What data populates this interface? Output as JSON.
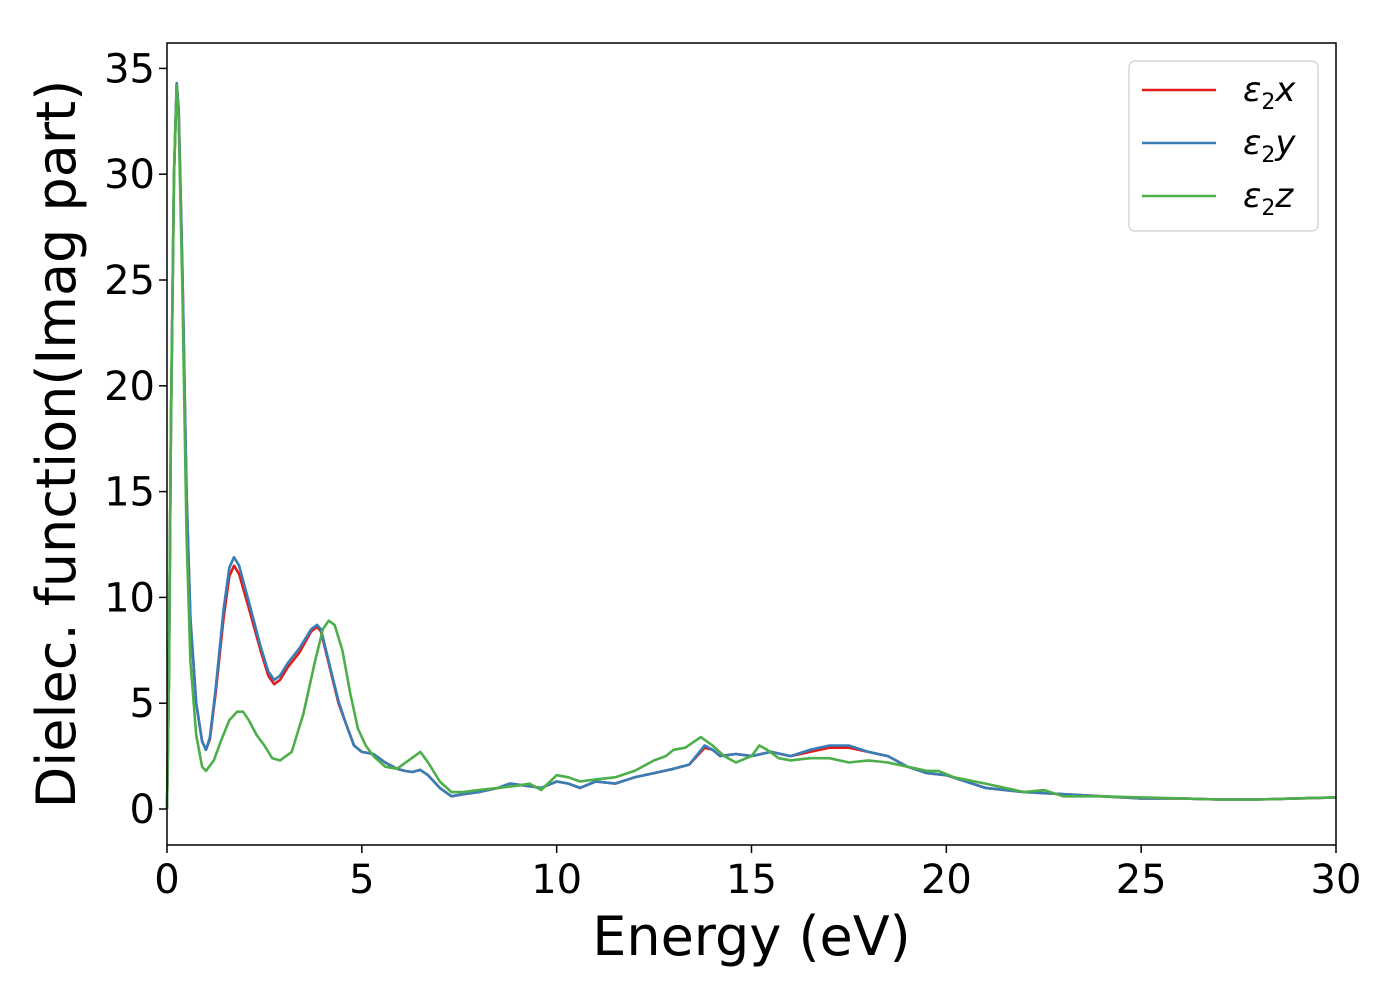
{
  "chart_data": {
    "type": "line",
    "title": "",
    "xlabel": "Energy (eV)",
    "ylabel": "Dielec. function(Imag part)",
    "xlim": [
      0,
      30
    ],
    "ylim": [
      -1.7,
      36.2
    ],
    "xticks": [
      0,
      5,
      10,
      15,
      20,
      25,
      30
    ],
    "yticks": [
      0,
      5,
      10,
      15,
      20,
      25,
      30,
      35
    ],
    "grid": false,
    "legend_position": "top-right",
    "series": [
      {
        "name": "ε2x",
        "legend_base": "ε",
        "legend_sub": "2",
        "legend_var": "x",
        "color": "#e41a1c",
        "points": [
          [
            0,
            0
          ],
          [
            0.05,
            6
          ],
          [
            0.1,
            18
          ],
          [
            0.18,
            30
          ],
          [
            0.25,
            34.3
          ],
          [
            0.3,
            33
          ],
          [
            0.4,
            25
          ],
          [
            0.5,
            15
          ],
          [
            0.6,
            9
          ],
          [
            0.75,
            5
          ],
          [
            0.9,
            3.2
          ],
          [
            1.0,
            2.8
          ],
          [
            1.1,
            3.3
          ],
          [
            1.25,
            5.5
          ],
          [
            1.45,
            9
          ],
          [
            1.6,
            11
          ],
          [
            1.72,
            11.5
          ],
          [
            1.85,
            11.1
          ],
          [
            2.1,
            9.5
          ],
          [
            2.4,
            7.5
          ],
          [
            2.6,
            6.3
          ],
          [
            2.75,
            5.9
          ],
          [
            2.9,
            6.1
          ],
          [
            3.1,
            6.7
          ],
          [
            3.4,
            7.4
          ],
          [
            3.7,
            8.4
          ],
          [
            3.85,
            8.6
          ],
          [
            3.95,
            8.4
          ],
          [
            4.2,
            6.5
          ],
          [
            4.4,
            5
          ],
          [
            4.6,
            4
          ],
          [
            4.8,
            3
          ],
          [
            5.0,
            2.7
          ],
          [
            5.3,
            2.6
          ],
          [
            5.6,
            2.2
          ],
          [
            5.9,
            1.9
          ],
          [
            6.1,
            1.8
          ],
          [
            6.3,
            1.75
          ],
          [
            6.5,
            1.85
          ],
          [
            6.7,
            1.6
          ],
          [
            7.0,
            1
          ],
          [
            7.3,
            0.6
          ],
          [
            7.6,
            0.7
          ],
          [
            8.0,
            0.8
          ],
          [
            8.5,
            1.0
          ],
          [
            8.8,
            1.2
          ],
          [
            9.2,
            1.1
          ],
          [
            9.6,
            1.0
          ],
          [
            10.0,
            1.3
          ],
          [
            10.3,
            1.2
          ],
          [
            10.6,
            1.0
          ],
          [
            11.0,
            1.3
          ],
          [
            11.5,
            1.2
          ],
          [
            12.0,
            1.5
          ],
          [
            12.5,
            1.7
          ],
          [
            13.0,
            1.9
          ],
          [
            13.4,
            2.1
          ],
          [
            13.8,
            2.9
          ],
          [
            14.0,
            2.8
          ],
          [
            14.2,
            2.5
          ],
          [
            14.6,
            2.6
          ],
          [
            15.0,
            2.5
          ],
          [
            15.5,
            2.7
          ],
          [
            16.0,
            2.5
          ],
          [
            16.5,
            2.7
          ],
          [
            17.0,
            2.9
          ],
          [
            17.5,
            2.9
          ],
          [
            18.0,
            2.7
          ],
          [
            18.5,
            2.5
          ],
          [
            19.0,
            2.0
          ],
          [
            19.5,
            1.7
          ],
          [
            20.0,
            1.6
          ],
          [
            20.5,
            1.3
          ],
          [
            21.0,
            1.0
          ],
          [
            22.0,
            0.8
          ],
          [
            23.0,
            0.7
          ],
          [
            24.0,
            0.6
          ],
          [
            25.0,
            0.5
          ],
          [
            26.0,
            0.5
          ],
          [
            27.0,
            0.45
          ],
          [
            28.0,
            0.45
          ],
          [
            29.0,
            0.5
          ],
          [
            30.0,
            0.55
          ]
        ]
      },
      {
        "name": "ε2y",
        "legend_base": "ε",
        "legend_sub": "2",
        "legend_var": "y",
        "color": "#377eb8",
        "points": [
          [
            0,
            0
          ],
          [
            0.05,
            6
          ],
          [
            0.1,
            18
          ],
          [
            0.18,
            30
          ],
          [
            0.25,
            34.3
          ],
          [
            0.3,
            33
          ],
          [
            0.4,
            25
          ],
          [
            0.5,
            15
          ],
          [
            0.6,
            9
          ],
          [
            0.75,
            5
          ],
          [
            0.9,
            3.2
          ],
          [
            1.0,
            2.8
          ],
          [
            1.1,
            3.4
          ],
          [
            1.25,
            5.7
          ],
          [
            1.45,
            9.4
          ],
          [
            1.6,
            11.4
          ],
          [
            1.72,
            11.9
          ],
          [
            1.85,
            11.5
          ],
          [
            2.1,
            9.8
          ],
          [
            2.4,
            7.7
          ],
          [
            2.6,
            6.5
          ],
          [
            2.75,
            6.1
          ],
          [
            2.9,
            6.3
          ],
          [
            3.1,
            6.9
          ],
          [
            3.4,
            7.6
          ],
          [
            3.7,
            8.5
          ],
          [
            3.85,
            8.7
          ],
          [
            3.95,
            8.5
          ],
          [
            4.2,
            6.6
          ],
          [
            4.4,
            5.1
          ],
          [
            4.6,
            4.0
          ],
          [
            4.8,
            3.0
          ],
          [
            5.0,
            2.7
          ],
          [
            5.3,
            2.6
          ],
          [
            5.6,
            2.2
          ],
          [
            5.9,
            1.9
          ],
          [
            6.1,
            1.8
          ],
          [
            6.3,
            1.75
          ],
          [
            6.5,
            1.85
          ],
          [
            6.7,
            1.6
          ],
          [
            7.0,
            1
          ],
          [
            7.3,
            0.6
          ],
          [
            7.6,
            0.7
          ],
          [
            8.0,
            0.8
          ],
          [
            8.5,
            1.0
          ],
          [
            8.8,
            1.2
          ],
          [
            9.2,
            1.1
          ],
          [
            9.6,
            1.0
          ],
          [
            10.0,
            1.3
          ],
          [
            10.3,
            1.2
          ],
          [
            10.6,
            1.0
          ],
          [
            11.0,
            1.3
          ],
          [
            11.5,
            1.2
          ],
          [
            12.0,
            1.5
          ],
          [
            12.5,
            1.7
          ],
          [
            13.0,
            1.9
          ],
          [
            13.4,
            2.1
          ],
          [
            13.8,
            3.0
          ],
          [
            14.0,
            2.8
          ],
          [
            14.2,
            2.5
          ],
          [
            14.6,
            2.6
          ],
          [
            15.0,
            2.5
          ],
          [
            15.5,
            2.7
          ],
          [
            16.0,
            2.5
          ],
          [
            16.5,
            2.8
          ],
          [
            17.0,
            3.0
          ],
          [
            17.5,
            3.0
          ],
          [
            18.0,
            2.7
          ],
          [
            18.5,
            2.5
          ],
          [
            19.0,
            2.0
          ],
          [
            19.5,
            1.7
          ],
          [
            20.0,
            1.6
          ],
          [
            20.5,
            1.3
          ],
          [
            21.0,
            1.0
          ],
          [
            22.0,
            0.8
          ],
          [
            23.0,
            0.7
          ],
          [
            24.0,
            0.6
          ],
          [
            25.0,
            0.5
          ],
          [
            26.0,
            0.5
          ],
          [
            27.0,
            0.45
          ],
          [
            28.0,
            0.45
          ],
          [
            29.0,
            0.5
          ],
          [
            30.0,
            0.55
          ]
        ]
      },
      {
        "name": "ε2z",
        "legend_base": "ε",
        "legend_sub": "2",
        "legend_var": "z",
        "color": "#4daf4a",
        "points": [
          [
            0,
            0
          ],
          [
            0.05,
            6
          ],
          [
            0.1,
            18
          ],
          [
            0.18,
            30
          ],
          [
            0.25,
            34.2
          ],
          [
            0.3,
            32.5
          ],
          [
            0.4,
            24
          ],
          [
            0.5,
            13
          ],
          [
            0.6,
            7
          ],
          [
            0.75,
            3.5
          ],
          [
            0.9,
            2
          ],
          [
            1.0,
            1.8
          ],
          [
            1.2,
            2.3
          ],
          [
            1.4,
            3.3
          ],
          [
            1.6,
            4.2
          ],
          [
            1.8,
            4.6
          ],
          [
            1.95,
            4.6
          ],
          [
            2.1,
            4.2
          ],
          [
            2.3,
            3.5
          ],
          [
            2.5,
            3.0
          ],
          [
            2.7,
            2.4
          ],
          [
            2.9,
            2.3
          ],
          [
            3.2,
            2.7
          ],
          [
            3.5,
            4.5
          ],
          [
            3.8,
            7.0
          ],
          [
            4.0,
            8.5
          ],
          [
            4.15,
            8.9
          ],
          [
            4.3,
            8.7
          ],
          [
            4.5,
            7.5
          ],
          [
            4.7,
            5.5
          ],
          [
            4.9,
            3.8
          ],
          [
            5.1,
            3.0
          ],
          [
            5.3,
            2.5
          ],
          [
            5.6,
            2.0
          ],
          [
            5.9,
            1.9
          ],
          [
            6.2,
            2.3
          ],
          [
            6.5,
            2.7
          ],
          [
            6.7,
            2.2
          ],
          [
            7.0,
            1.3
          ],
          [
            7.3,
            0.8
          ],
          [
            7.6,
            0.8
          ],
          [
            8.0,
            0.9
          ],
          [
            8.5,
            1.0
          ],
          [
            9.0,
            1.1
          ],
          [
            9.3,
            1.2
          ],
          [
            9.6,
            0.9
          ],
          [
            10.0,
            1.6
          ],
          [
            10.3,
            1.5
          ],
          [
            10.6,
            1.3
          ],
          [
            11.0,
            1.4
          ],
          [
            11.5,
            1.5
          ],
          [
            12.0,
            1.8
          ],
          [
            12.5,
            2.3
          ],
          [
            12.8,
            2.5
          ],
          [
            13.0,
            2.8
          ],
          [
            13.3,
            2.9
          ],
          [
            13.7,
            3.4
          ],
          [
            14.0,
            3.0
          ],
          [
            14.3,
            2.5
          ],
          [
            14.6,
            2.2
          ],
          [
            15.0,
            2.5
          ],
          [
            15.2,
            3.0
          ],
          [
            15.4,
            2.8
          ],
          [
            15.7,
            2.4
          ],
          [
            16.0,
            2.3
          ],
          [
            16.5,
            2.4
          ],
          [
            17.0,
            2.4
          ],
          [
            17.5,
            2.2
          ],
          [
            18.0,
            2.3
          ],
          [
            18.5,
            2.2
          ],
          [
            19.0,
            2.0
          ],
          [
            19.5,
            1.8
          ],
          [
            19.8,
            1.8
          ],
          [
            20.2,
            1.5
          ],
          [
            21.0,
            1.2
          ],
          [
            22.0,
            0.8
          ],
          [
            22.5,
            0.9
          ],
          [
            23.0,
            0.6
          ],
          [
            24.0,
            0.6
          ],
          [
            25.0,
            0.55
          ],
          [
            26.0,
            0.5
          ],
          [
            27.0,
            0.45
          ],
          [
            28.0,
            0.45
          ],
          [
            29.0,
            0.5
          ],
          [
            30.0,
            0.55
          ]
        ]
      }
    ]
  }
}
